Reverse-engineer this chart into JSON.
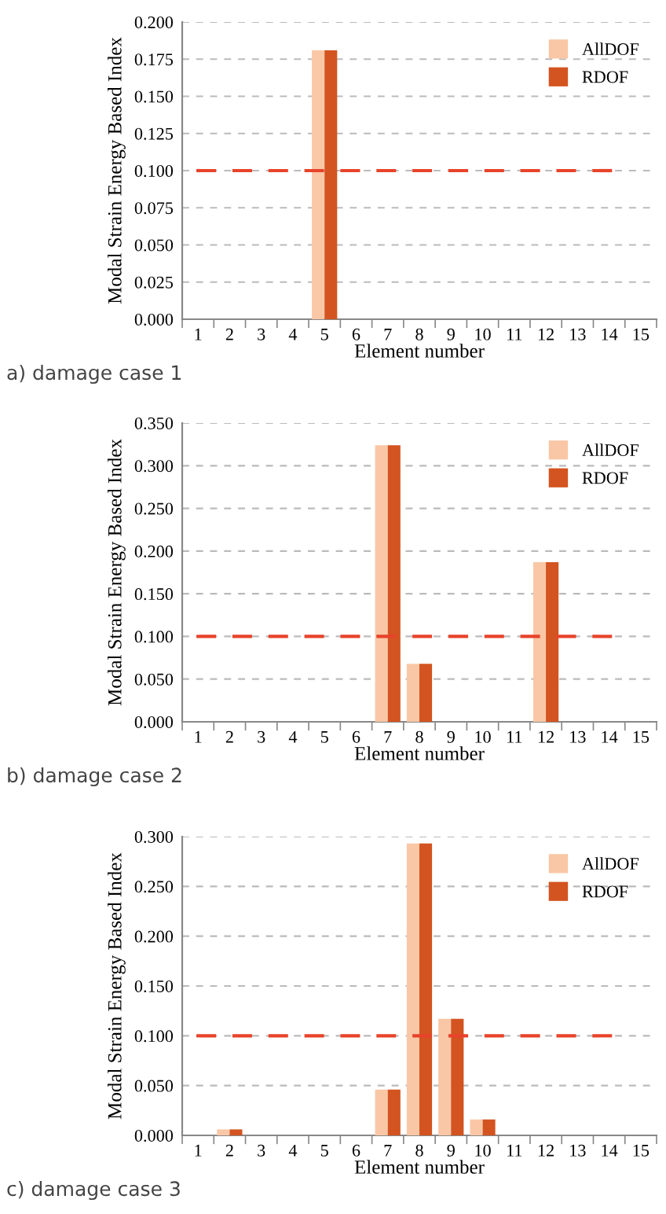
{
  "chart_data": [
    {
      "type": "bar",
      "xlabel": "Element number",
      "ylabel": "Modal Strain Energy Based Index",
      "categories": [
        "1",
        "2",
        "3",
        "4",
        "5",
        "6",
        "7",
        "8",
        "9",
        "10",
        "11",
        "12",
        "13",
        "14",
        "15"
      ],
      "series": [
        {
          "name": "AllDOF",
          "color": "#f9c7a6",
          "values": [
            0,
            0,
            0,
            0,
            0.181,
            0,
            0,
            0,
            0,
            0,
            0,
            0,
            0,
            0,
            0
          ]
        },
        {
          "name": "RDOF",
          "color": "#d35420",
          "values": [
            0,
            0,
            0,
            0,
            0.181,
            0,
            0,
            0,
            0,
            0,
            0,
            0,
            0,
            0,
            0
          ]
        }
      ],
      "ylim": [
        0,
        0.2
      ],
      "yticks": [
        {
          "value": 0,
          "label": "0.000"
        },
        {
          "value": 0.025,
          "label": "0.025"
        },
        {
          "value": 0.05,
          "label": "0.050"
        },
        {
          "value": 0.075,
          "label": "0.075"
        },
        {
          "value": 0.1,
          "label": "0.100"
        },
        {
          "value": 0.125,
          "label": "0.125"
        },
        {
          "value": 0.15,
          "label": "0.150"
        },
        {
          "value": 0.175,
          "label": "0.175"
        },
        {
          "value": 0.2,
          "label": "0.200"
        }
      ],
      "ref_lines": [
        {
          "axis": "y",
          "value": 0.1,
          "color": "#e8432a",
          "line_style": "dashed"
        }
      ],
      "grid": "y",
      "legend": "top right",
      "annotations": [
        "a) damage case 1"
      ]
    },
    {
      "type": "bar",
      "xlabel": "Element number",
      "ylabel": "Modal Strain Energy Based Index",
      "categories": [
        "1",
        "2",
        "3",
        "4",
        "5",
        "6",
        "7",
        "8",
        "9",
        "10",
        "11",
        "12",
        "13",
        "14",
        "15"
      ],
      "series": [
        {
          "name": "AllDOF",
          "color": "#f9c7a6",
          "values": [
            0,
            0,
            0,
            0,
            0,
            0,
            0.324,
            0.068,
            0,
            0,
            0,
            0.187,
            0,
            0,
            0
          ]
        },
        {
          "name": "RDOF",
          "color": "#d35420",
          "values": [
            0,
            0,
            0,
            0,
            0,
            0,
            0.324,
            0.068,
            0,
            0,
            0,
            0.187,
            0,
            0,
            0
          ]
        }
      ],
      "ylim": [
        0,
        0.35
      ],
      "yticks": [
        {
          "value": 0,
          "label": "0.000"
        },
        {
          "value": 0.05,
          "label": "0.050"
        },
        {
          "value": 0.1,
          "label": "0.100"
        },
        {
          "value": 0.15,
          "label": "0.150"
        },
        {
          "value": 0.2,
          "label": "0.200"
        },
        {
          "value": 0.25,
          "label": "0.250"
        },
        {
          "value": 0.3,
          "label": "0.300"
        },
        {
          "value": 0.35,
          "label": "0.350"
        }
      ],
      "ref_lines": [
        {
          "axis": "y",
          "value": 0.1,
          "color": "#e8432a",
          "line_style": "dashed"
        }
      ],
      "grid": "y",
      "legend": "top right",
      "annotations": [
        "b) damage case 2"
      ]
    },
    {
      "type": "bar",
      "xlabel": "Element number",
      "ylabel": "Modal Strain Energy Based Index",
      "categories": [
        "1",
        "2",
        "3",
        "4",
        "5",
        "6",
        "7",
        "8",
        "9",
        "10",
        "11",
        "12",
        "13",
        "14",
        "15"
      ],
      "series": [
        {
          "name": "AllDOF",
          "color": "#f9c7a6",
          "values": [
            0,
            0.006,
            0,
            0,
            0,
            0,
            0.046,
            0.293,
            0.117,
            0.016,
            0,
            0,
            0,
            0,
            0
          ]
        },
        {
          "name": "RDOF",
          "color": "#d35420",
          "values": [
            0,
            0.006,
            0,
            0,
            0,
            0,
            0.046,
            0.293,
            0.117,
            0.016,
            0,
            0,
            0,
            0,
            0
          ]
        }
      ],
      "ylim": [
        0,
        0.3
      ],
      "yticks": [
        {
          "value": 0,
          "label": "0.000"
        },
        {
          "value": 0.05,
          "label": "0.050"
        },
        {
          "value": 0.1,
          "label": "0.100"
        },
        {
          "value": 0.15,
          "label": "0.150"
        },
        {
          "value": 0.2,
          "label": "0.200"
        },
        {
          "value": 0.25,
          "label": "0.250"
        },
        {
          "value": 0.3,
          "label": "0.300"
        }
      ],
      "ref_lines": [
        {
          "axis": "y",
          "value": 0.1,
          "color": "#e8432a",
          "line_style": "dashed"
        }
      ],
      "grid": "y",
      "legend": "top right",
      "annotations": [
        "c) damage case 3"
      ]
    }
  ]
}
